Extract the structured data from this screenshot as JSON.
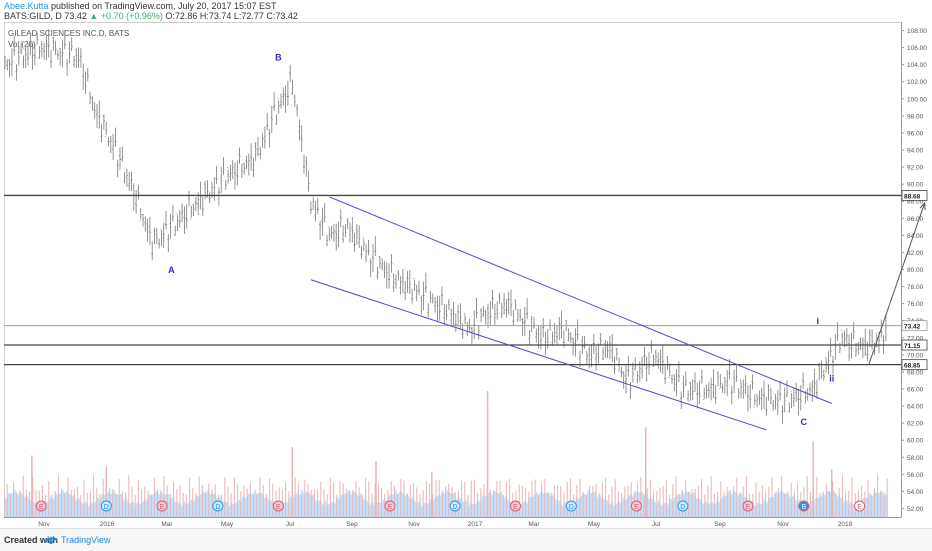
{
  "header": {
    "author": "Abee.Kutta",
    "published": " published on TradingView.com, July 20, 2017 15:07 EST",
    "symbol_line": "BATS:GILD, D  73.42",
    "change": "▲ +0.70 (+0.96%)",
    "ohlc": " O:72.86  H:73.74  L:72.77  C:73.42"
  },
  "footer": {
    "created": "Created with",
    "brand": "TradingView"
  },
  "chart_data": {
    "type": "ohlc",
    "title": "GILEAD SCIENCES INC.D, BATS",
    "indicator": "Vol (20)",
    "ylim": [
      51,
      109
    ],
    "y_ticks": [
      52,
      54,
      56,
      58,
      60,
      62,
      64,
      66,
      68,
      70,
      72,
      74,
      76,
      78,
      80,
      82,
      84,
      86,
      88,
      90,
      92,
      94,
      96,
      98,
      100,
      102,
      104,
      106,
      108
    ],
    "x_tick_labels": [
      "Nov",
      "2016",
      "Mar",
      "May",
      "Jul",
      "Sep",
      "Nov",
      "2017",
      "Mar",
      "May",
      "Jul",
      "Sep",
      "Nov",
      "2018"
    ],
    "price_path": {
      "t": [
        0,
        4,
        8,
        10,
        12,
        14,
        16,
        20,
        22,
        24,
        27,
        29,
        31,
        33,
        35,
        37,
        39,
        42,
        45,
        48,
        50,
        52,
        54,
        56,
        58,
        60,
        63,
        65,
        67,
        70,
        73,
        76,
        78,
        81,
        84,
        87,
        90,
        92,
        94,
        95
      ],
      "v": [
        104,
        106,
        105,
        98,
        94,
        89,
        83,
        87,
        89,
        91,
        93,
        98,
        102,
        88,
        84,
        85,
        82,
        79,
        77,
        75,
        73,
        75,
        76,
        74,
        72,
        73,
        70,
        71,
        67,
        70,
        66,
        66,
        67,
        65,
        64.5,
        66,
        72,
        71,
        71.5,
        73.42
      ]
    },
    "volume_spikes": [
      {
        "t": 52,
        "v": 4.5
      },
      {
        "t": 69,
        "v": 3.2
      },
      {
        "t": 87,
        "v": 2.7
      },
      {
        "t": 31,
        "v": 2.5
      },
      {
        "t": 40,
        "v": 2.0
      },
      {
        "t": 3,
        "v": 2.2
      },
      {
        "t": 11,
        "v": 1.8
      },
      {
        "t": 46,
        "v": 1.6
      },
      {
        "t": 89,
        "v": 1.7
      }
    ],
    "horizontal_levels": [
      {
        "price": 88.68,
        "label": "88.68",
        "style": "dark"
      },
      {
        "price": 73.42,
        "label": "73.42",
        "style": "light"
      },
      {
        "price": 71.15,
        "label": "71.15",
        "style": "dark"
      },
      {
        "price": 68.85,
        "label": "68.85",
        "style": "dark"
      }
    ],
    "channel_upper": {
      "t1": 35,
      "p1": 88.5,
      "t2": 89,
      "p2": 64.3
    },
    "channel_lower": {
      "t1": 33,
      "p1": 78.8,
      "t2": 82,
      "p2": 61.2
    },
    "arrow": {
      "t1": 93,
      "p1": 68.9,
      "t2": 99,
      "p2": 87.8
    },
    "wave_labels": [
      {
        "text": "A",
        "t": 18,
        "p": 79.6
      },
      {
        "text": "B",
        "t": 29.5,
        "p": 104.5
      },
      {
        "text": "C",
        "t": 86,
        "p": 61.8
      },
      {
        "text": "i",
        "t": 87.5,
        "p": 73.6
      },
      {
        "text": "ii",
        "t": 89,
        "p": 66.9
      }
    ],
    "events": [
      {
        "type": "E",
        "t": 4
      },
      {
        "type": "D",
        "t": 11
      },
      {
        "type": "E",
        "t": 17
      },
      {
        "type": "D",
        "t": 23
      },
      {
        "type": "E",
        "t": 29.5
      },
      {
        "type": "E",
        "t": 41.5
      },
      {
        "type": "D",
        "t": 48.5
      },
      {
        "type": "E",
        "t": 55
      },
      {
        "type": "D",
        "t": 61
      },
      {
        "type": "E",
        "t": 68
      },
      {
        "type": "D",
        "t": 73
      },
      {
        "type": "E",
        "t": 80
      },
      {
        "type": "B",
        "t": 86
      },
      {
        "type": "E",
        "t": 92
      }
    ],
    "colors": {
      "bars": "#7a7a7a",
      "channel": "#4a4ad0",
      "level_dark": "#444444",
      "level_light": "#9e9e9e",
      "wave_label": "#2a2ab4",
      "volume_area": "#90caf9",
      "volume_spike": "#e8b4b4",
      "earnings": "#d45e7b",
      "dividend": "#2196f3"
    }
  }
}
